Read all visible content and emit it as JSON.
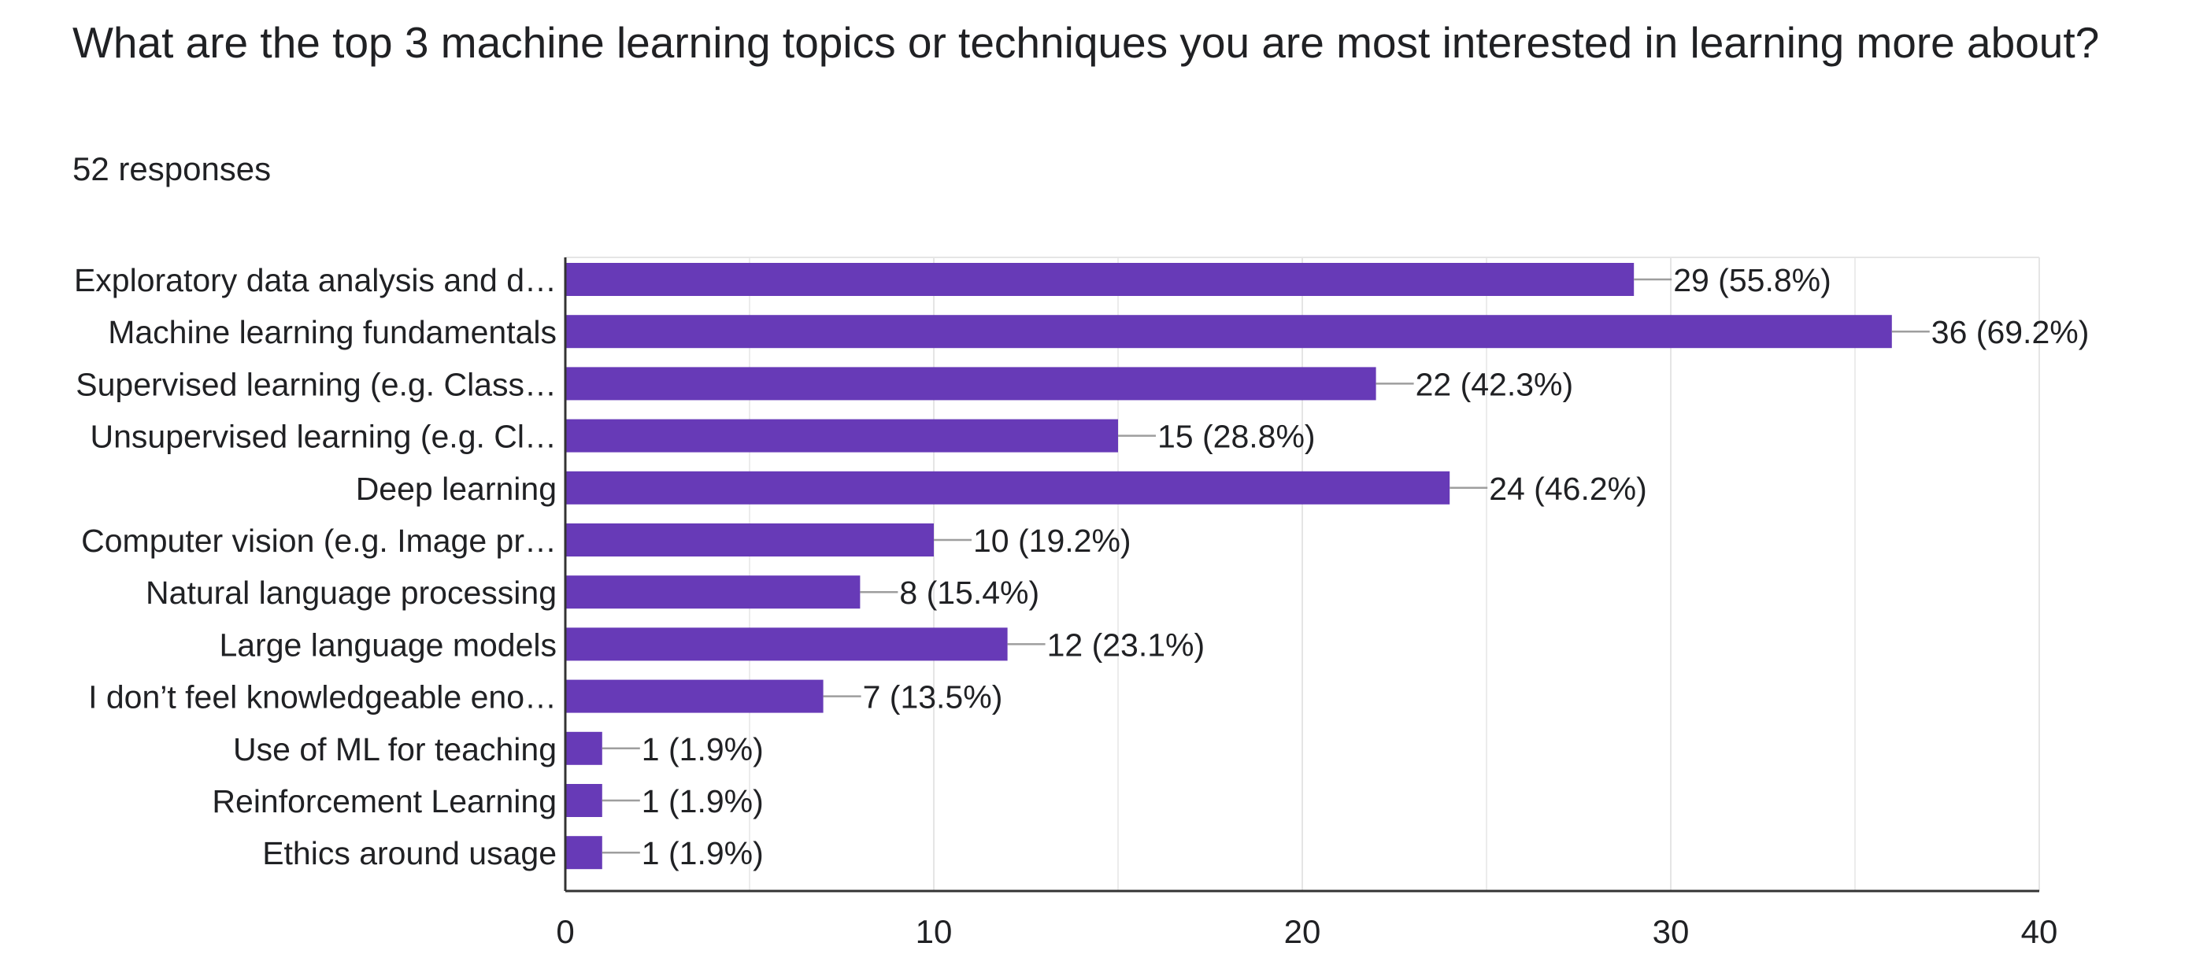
{
  "question": {
    "title": "What are the top 3 machine learning topics or techniques you are most interested in learning more about?",
    "responses_label": "52 responses"
  },
  "colors": {
    "bar": "#673ab7",
    "grid": "#e5e5e5",
    "axis": "#333333",
    "leader": "#9e9e9e",
    "text": "#202124"
  },
  "chart_data": {
    "type": "bar",
    "orientation": "horizontal",
    "categories": [
      "Exploratory data analysis and d…",
      "Machine learning fundamentals",
      "Supervised learning (e.g. Class…",
      "Unsupervised learning (e.g. Cl…",
      "Deep learning",
      "Computer vision (e.g. Image pr…",
      "Natural language processing",
      "Large language models",
      "I don’t feel knowledgeable eno…",
      "Use of ML for teaching",
      "Reinforcement Learning",
      "Ethics around usage"
    ],
    "values": [
      29,
      36,
      22,
      15,
      24,
      10,
      8,
      12,
      7,
      1,
      1,
      1
    ],
    "data_labels": [
      "29 (55.8%)",
      "36 (69.2%)",
      "22 (42.3%)",
      "15 (28.8%)",
      "24 (46.2%)",
      "10 (19.2%)",
      "8 (15.4%)",
      "12 (23.1%)",
      "7 (13.5%)",
      "1 (1.9%)",
      "1 (1.9%)",
      "1 (1.9%)"
    ],
    "xlim": [
      0,
      40
    ],
    "x_ticks": [
      0,
      10,
      20,
      30,
      40
    ],
    "x_tick_labels": [
      "0",
      "10",
      "20",
      "30",
      "40"
    ],
    "minor_grid": [
      5,
      15,
      25,
      35
    ],
    "grid": true,
    "legend": "none"
  }
}
